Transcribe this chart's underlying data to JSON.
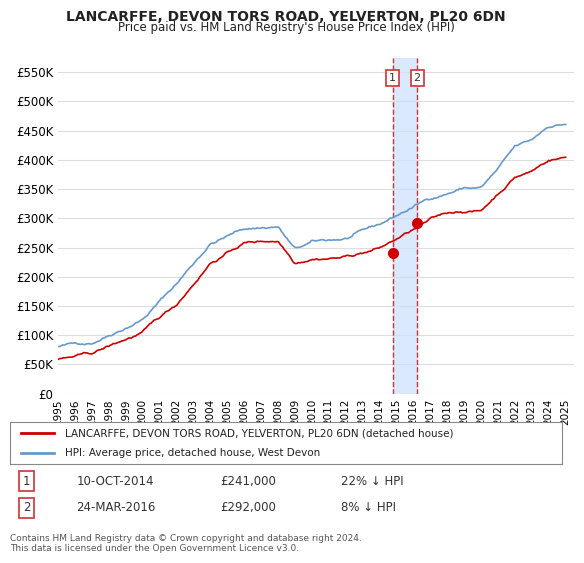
{
  "title": "LANCARFFE, DEVON TORS ROAD, YELVERTON, PL20 6DN",
  "subtitle": "Price paid vs. HM Land Registry's House Price Index (HPI)",
  "legend_label_red": "LANCARFFE, DEVON TORS ROAD, YELVERTON, PL20 6DN (detached house)",
  "legend_label_blue": "HPI: Average price, detached house, West Devon",
  "transactions": [
    {
      "id": 1,
      "date": "10-OCT-2014",
      "price": 241000,
      "pct": "22%",
      "dir": "↓",
      "x": 2014.78
    },
    {
      "id": 2,
      "date": "24-MAR-2016",
      "price": 292000,
      "pct": "8%",
      "dir": "↓",
      "x": 2016.23
    }
  ],
  "vline_x1": 2014.78,
  "vline_x2": 2016.23,
  "footer": "Contains HM Land Registry data © Crown copyright and database right 2024.\nThis data is licensed under the Open Government Licence v3.0.",
  "ylim": [
    0,
    575000
  ],
  "yticks": [
    0,
    50000,
    100000,
    150000,
    200000,
    250000,
    300000,
    350000,
    400000,
    450000,
    500000,
    550000
  ],
  "red_color": "#cc0000",
  "blue_color": "#6699cc",
  "vline_color": "#cc3333",
  "highlight_box_color": "#cce0ff",
  "xmin": 1995,
  "xmax": 2025.5,
  "background_color": "#ffffff",
  "grid_color": "#dddddd"
}
